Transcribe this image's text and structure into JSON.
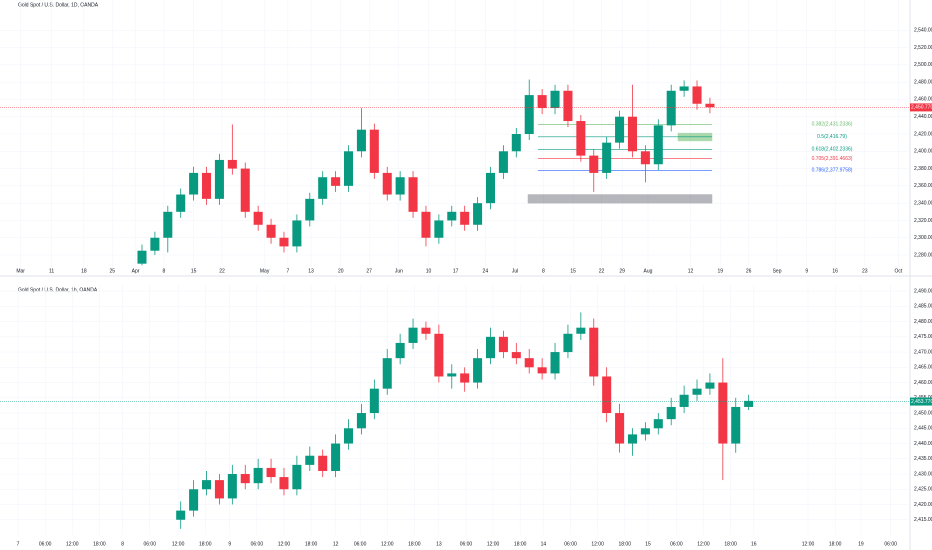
{
  "chart_data": [
    {
      "type": "candlestick",
      "title": "Gold Spot / U.S. Dollar, 1D, OANDA",
      "up_color": "#089981",
      "down_color": "#f23645",
      "x": [
        11,
        12,
        13,
        14,
        15,
        16,
        17,
        18,
        19,
        20,
        21,
        22,
        23,
        24,
        25,
        26,
        27,
        28,
        29,
        30,
        31,
        32,
        33,
        34,
        35,
        36,
        37,
        38,
        39,
        40,
        41,
        42,
        43,
        44,
        45,
        46,
        47,
        48,
        49,
        50,
        51,
        52,
        53,
        54,
        55
      ],
      "open": [
        2270,
        2285,
        2300,
        2330,
        2350,
        2375,
        2345,
        2390,
        2380,
        2330,
        2315,
        2300,
        2290,
        2320,
        2345,
        2370,
        2360,
        2400,
        2425,
        2375,
        2350,
        2370,
        2330,
        2300,
        2320,
        2330,
        2315,
        2340,
        2375,
        2400,
        2420,
        2465,
        2450,
        2470,
        2435,
        2395,
        2375,
        2410,
        2440,
        2400,
        2385,
        2430,
        2470,
        2475,
        2455
      ],
      "high": [
        2292,
        2307,
        2337,
        2357,
        2382,
        2382,
        2397,
        2431,
        2387,
        2337,
        2322,
        2307,
        2327,
        2352,
        2377,
        2377,
        2407,
        2450,
        2432,
        2382,
        2377,
        2377,
        2337,
        2327,
        2337,
        2337,
        2347,
        2382,
        2407,
        2427,
        2483,
        2472,
        2477,
        2477,
        2442,
        2402,
        2417,
        2447,
        2477,
        2407,
        2437,
        2477,
        2482,
        2482,
        2462
      ],
      "low": [
        2268,
        2280,
        2283,
        2323,
        2343,
        2338,
        2338,
        2373,
        2323,
        2308,
        2293,
        2283,
        2283,
        2313,
        2338,
        2353,
        2353,
        2393,
        2368,
        2343,
        2343,
        2323,
        2290,
        2293,
        2313,
        2308,
        2308,
        2333,
        2368,
        2393,
        2413,
        2443,
        2443,
        2428,
        2388,
        2353,
        2368,
        2403,
        2393,
        2364,
        2378,
        2423,
        2463,
        2448,
        2444
      ],
      "close": [
        2285,
        2300,
        2330,
        2350,
        2375,
        2345,
        2390,
        2380,
        2330,
        2315,
        2300,
        2290,
        2320,
        2345,
        2370,
        2360,
        2400,
        2425,
        2375,
        2350,
        2370,
        2330,
        2300,
        2320,
        2330,
        2315,
        2340,
        2375,
        2400,
        2420,
        2465,
        2450,
        2470,
        2435,
        2395,
        2375,
        2410,
        2440,
        2400,
        2385,
        2430,
        2470,
        2475,
        2455,
        2451
      ],
      "xlim": [
        0,
        70.5
      ],
      "ylim": [
        2265,
        2575
      ],
      "xticks": [
        {
          "value": 1.6,
          "label": "Mar"
        },
        {
          "value": 4.0,
          "label": "11"
        },
        {
          "value": 6.5,
          "label": "18"
        },
        {
          "value": 8.7,
          "label": "25"
        },
        {
          "value": 10.5,
          "label": "Apr"
        },
        {
          "value": 12.7,
          "label": "8"
        },
        {
          "value": 15.0,
          "label": "15"
        },
        {
          "value": 17.2,
          "label": "22"
        },
        {
          "value": 20.5,
          "label": "May"
        },
        {
          "value": 22.3,
          "label": "7"
        },
        {
          "value": 24.1,
          "label": "13"
        },
        {
          "value": 26.4,
          "label": "20"
        },
        {
          "value": 28.6,
          "label": "27"
        },
        {
          "value": 30.9,
          "label": "Jun"
        },
        {
          "value": 33.2,
          "label": "10"
        },
        {
          "value": 35.3,
          "label": "17"
        },
        {
          "value": 37.6,
          "label": "24"
        },
        {
          "value": 39.9,
          "label": "Jul"
        },
        {
          "value": 42.1,
          "label": "8"
        },
        {
          "value": 44.4,
          "label": "15"
        },
        {
          "value": 46.6,
          "label": "22"
        },
        {
          "value": 48.2,
          "label": "29"
        },
        {
          "value": 50.2,
          "label": "Aug"
        },
        {
          "value": 53.5,
          "label": "12"
        },
        {
          "value": 55.8,
          "label": "19"
        },
        {
          "value": 58.0,
          "label": "26"
        },
        {
          "value": 60.2,
          "label": "Sep"
        },
        {
          "value": 62.5,
          "label": "9"
        },
        {
          "value": 64.7,
          "label": "16"
        },
        {
          "value": 67.0,
          "label": "23"
        },
        {
          "value": 69.6,
          "label": "Oct"
        }
      ],
      "yticks": [
        {
          "value": 2280,
          "label": "2,280.000"
        },
        {
          "value": 2300,
          "label": "2,300.000"
        },
        {
          "value": 2320,
          "label": "2,320.000"
        },
        {
          "value": 2340,
          "label": "2,340.000"
        },
        {
          "value": 2360,
          "label": "2,360.000"
        },
        {
          "value": 2380,
          "label": "2,380.000"
        },
        {
          "value": 2400,
          "label": "2,400.000"
        },
        {
          "value": 2420,
          "label": "2,420.000"
        },
        {
          "value": 2440,
          "label": "2,440.000"
        },
        {
          "value": 2460,
          "label": "2,460.000"
        },
        {
          "value": 2480,
          "label": "2,480.000"
        },
        {
          "value": 2500,
          "label": "2,500.000"
        },
        {
          "value": 2520,
          "label": "2,520.000"
        },
        {
          "value": 2540,
          "label": "2,540.000"
        }
      ],
      "last_price": {
        "value": 2450.77,
        "label": "2,450.770"
      },
      "levels": [
        {
          "value": 2431.2336,
          "label": "0.382(2,431.2336)",
          "color": "#66bb6a"
        },
        {
          "value": 2416.79,
          "label": "0.5(2,416.79)",
          "color": "#089981"
        },
        {
          "value": 2402.2336,
          "label": "0.618(2,402.2336)",
          "color": "#089981"
        },
        {
          "value": 2391.4663,
          "label": "0.705(2,391.4663)",
          "color": "#f23645"
        },
        {
          "value": 2377.9758,
          "label": "0.786(2,377.9758)",
          "color": "#2962ff"
        }
      ],
      "zones": [
        {
          "from": 2412,
          "to": 2421,
          "color": "#66bb6a"
        },
        {
          "from": 2340,
          "to": 2350,
          "color": "#787b86"
        }
      ]
    },
    {
      "type": "candlestick",
      "title": "Gold Spot / U.S. Dollar, 1h, OANDA",
      "up_color": "#089981",
      "down_color": "#f23645",
      "x": [
        14,
        15,
        16,
        17,
        18,
        19,
        20,
        21,
        22,
        23,
        24,
        25,
        26,
        27,
        28,
        29,
        30,
        31,
        32,
        33,
        34,
        35,
        36,
        37,
        38,
        39,
        40,
        41,
        42,
        43,
        44,
        45,
        46,
        47,
        48,
        49,
        50,
        51,
        52,
        53,
        54,
        55,
        56,
        57,
        58
      ],
      "open": [
        2415,
        2418,
        2425,
        2428,
        2422,
        2430,
        2427,
        2432,
        2429,
        2425,
        2433,
        2436,
        2431,
        2440,
        2445,
        2450,
        2458,
        2468,
        2473,
        2478,
        2476,
        2462,
        2463,
        2460,
        2468,
        2475,
        2470,
        2468,
        2465,
        2463,
        2470,
        2476,
        2478,
        2462,
        2450,
        2440,
        2443,
        2445,
        2448,
        2452,
        2456,
        2458,
        2460,
        2440,
        2452
      ],
      "high": [
        2421,
        2428,
        2431,
        2430,
        2433,
        2433,
        2435,
        2435,
        2432,
        2436,
        2439,
        2438,
        2443,
        2448,
        2453,
        2461,
        2471,
        2476,
        2481,
        2480,
        2479,
        2466,
        2465,
        2471,
        2478,
        2477,
        2473,
        2471,
        2468,
        2473,
        2479,
        2483,
        2481,
        2465,
        2453,
        2445,
        2447,
        2450,
        2455,
        2459,
        2461,
        2463,
        2468,
        2455,
        2456
      ],
      "low": [
        2412,
        2416,
        2423,
        2420,
        2420,
        2425,
        2425,
        2427,
        2423,
        2423,
        2431,
        2429,
        2429,
        2438,
        2443,
        2448,
        2456,
        2466,
        2471,
        2474,
        2460,
        2458,
        2457,
        2458,
        2466,
        2468,
        2466,
        2463,
        2461,
        2461,
        2468,
        2474,
        2459,
        2447,
        2437,
        2436,
        2441,
        2443,
        2446,
        2450,
        2454,
        2456,
        2428,
        2437,
        2451
      ],
      "close": [
        2418,
        2425,
        2428,
        2422,
        2430,
        2427,
        2432,
        2429,
        2425,
        2433,
        2436,
        2431,
        2440,
        2445,
        2450,
        2458,
        2468,
        2473,
        2478,
        2476,
        2462,
        2463,
        2460,
        2468,
        2475,
        2470,
        2468,
        2465,
        2463,
        2470,
        2476,
        2478,
        2462,
        2450,
        2440,
        2443,
        2445,
        2448,
        2452,
        2456,
        2458,
        2460,
        2440,
        2452,
        2454
      ],
      "xlim": [
        0,
        70.5
      ],
      "ylim": [
        2410,
        2492
      ],
      "xticks": [
        {
          "value": 1.4,
          "label": "7"
        },
        {
          "value": 3.5,
          "label": "06:00"
        },
        {
          "value": 5.6,
          "label": "12:00"
        },
        {
          "value": 7.7,
          "label": "18:00"
        },
        {
          "value": 9.5,
          "label": "8"
        },
        {
          "value": 11.6,
          "label": "06:00"
        },
        {
          "value": 13.8,
          "label": "12:00"
        },
        {
          "value": 15.9,
          "label": "18:00"
        },
        {
          "value": 17.8,
          "label": "9"
        },
        {
          "value": 19.9,
          "label": "06:00"
        },
        {
          "value": 22.0,
          "label": "12:00"
        },
        {
          "value": 24.1,
          "label": "18:00"
        },
        {
          "value": 26.0,
          "label": "12"
        },
        {
          "value": 27.9,
          "label": "06:00"
        },
        {
          "value": 30.0,
          "label": "12:00"
        },
        {
          "value": 32.1,
          "label": "18:00"
        },
        {
          "value": 34.0,
          "label": "13"
        },
        {
          "value": 36.1,
          "label": "06:00"
        },
        {
          "value": 38.2,
          "label": "12:00"
        },
        {
          "value": 40.3,
          "label": "18:00"
        },
        {
          "value": 42.1,
          "label": "14"
        },
        {
          "value": 44.2,
          "label": "06:00"
        },
        {
          "value": 46.3,
          "label": "12:00"
        },
        {
          "value": 48.4,
          "label": "18:00"
        },
        {
          "value": 50.2,
          "label": "15"
        },
        {
          "value": 52.4,
          "label": "06:00"
        },
        {
          "value": 54.5,
          "label": "12:00"
        },
        {
          "value": 56.6,
          "label": "18:00"
        },
        {
          "value": 58.4,
          "label": "16"
        },
        {
          "value": 62.6,
          "label": "12:00"
        },
        {
          "value": 64.7,
          "label": "18:00"
        },
        {
          "value": 66.7,
          "label": "19"
        },
        {
          "value": 69.0,
          "label": "06:00"
        }
      ],
      "yticks": [
        {
          "value": 2415,
          "label": "2,415.000"
        },
        {
          "value": 2420,
          "label": "2,420.000"
        },
        {
          "value": 2425,
          "label": "2,425.000"
        },
        {
          "value": 2430,
          "label": "2,430.000"
        },
        {
          "value": 2435,
          "label": "2,435.000"
        },
        {
          "value": 2440,
          "label": "2,440.000"
        },
        {
          "value": 2445,
          "label": "2,445.000"
        },
        {
          "value": 2450,
          "label": "2,450.000"
        },
        {
          "value": 2455,
          "label": "2,455.000"
        },
        {
          "value": 2460,
          "label": "2,460.000"
        },
        {
          "value": 2465,
          "label": "2,465.000"
        },
        {
          "value": 2470,
          "label": "2,470.000"
        },
        {
          "value": 2475,
          "label": "2,475.000"
        },
        {
          "value": 2480,
          "label": "2,480.000"
        },
        {
          "value": 2485,
          "label": "2,485.000"
        },
        {
          "value": 2490,
          "label": "2,490.000"
        }
      ],
      "last_price": {
        "value": 2453.77,
        "label": "2,453.770"
      }
    }
  ]
}
